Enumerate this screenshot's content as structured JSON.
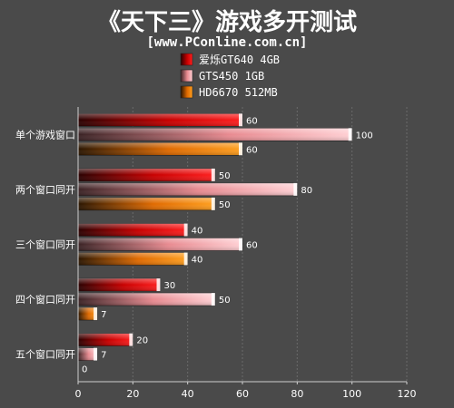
{
  "chart_data": {
    "type": "bar",
    "orientation": "horizontal",
    "title": "《天下三》游戏多开测试",
    "subtitle": "[www.PConline.com.cn]",
    "categories": [
      "单个游戏窗口",
      "两个窗口同开",
      "三个窗口同开",
      "四个窗口同开",
      "五个窗口同开"
    ],
    "series": [
      {
        "name": "爱烁GT640 4GB",
        "values": [
          60,
          50,
          40,
          30,
          20
        ],
        "color": "#ff1a1a"
      },
      {
        "name": "GTS450 1GB",
        "values": [
          100,
          80,
          60,
          50,
          7
        ],
        "color": "#ff9aa0"
      },
      {
        "name": "HD6670 512MB",
        "values": [
          60,
          50,
          40,
          7,
          0
        ],
        "color": "#ff8a00"
      }
    ],
    "xlim": [
      0,
      120
    ],
    "xticks": [
      0,
      20,
      40,
      60,
      80,
      100,
      120
    ],
    "grid": true,
    "legend_position": "top-center"
  }
}
